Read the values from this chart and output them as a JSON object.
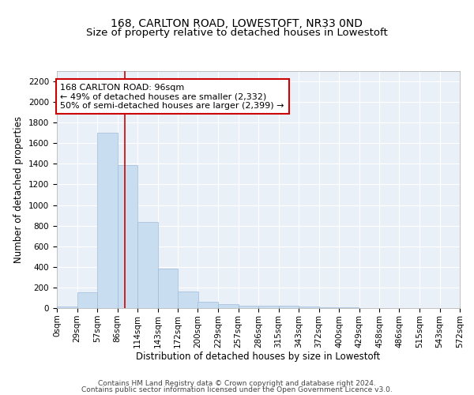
{
  "title": "168, CARLTON ROAD, LOWESTOFT, NR33 0ND",
  "subtitle": "Size of property relative to detached houses in Lowestoft",
  "xlabel": "Distribution of detached houses by size in Lowestoft",
  "ylabel": "Number of detached properties",
  "bar_color": "#c8ddf0",
  "bar_edge_color": "#a0bcd8",
  "bg_color": "#eaf0f8",
  "grid_color": "white",
  "bin_edges": [
    0,
    28.6,
    57.2,
    85.8,
    114.4,
    143.0,
    171.6,
    200.2,
    228.8,
    257.4,
    286.0,
    314.6,
    343.2,
    371.8,
    400.4,
    429.0,
    457.6,
    486.2,
    514.8,
    543.4,
    572.0
  ],
  "bar_heights": [
    15,
    155,
    1700,
    1390,
    835,
    385,
    160,
    60,
    35,
    25,
    25,
    20,
    15,
    5,
    5,
    3,
    2,
    1,
    1,
    1
  ],
  "property_size": 96,
  "red_line_color": "#cc0000",
  "annotation_line1": "168 CARLTON ROAD: 96sqm",
  "annotation_line2": "← 49% of detached houses are smaller (2,332)",
  "annotation_line3": "50% of semi-detached houses are larger (2,399) →",
  "annotation_box_color": "white",
  "annotation_box_edge": "#cc0000",
  "ylim_max": 2300,
  "yticks": [
    0,
    200,
    400,
    600,
    800,
    1000,
    1200,
    1400,
    1600,
    1800,
    2000,
    2200
  ],
  "tick_labels": [
    "0sqm",
    "29sqm",
    "57sqm",
    "86sqm",
    "114sqm",
    "143sqm",
    "172sqm",
    "200sqm",
    "229sqm",
    "257sqm",
    "286sqm",
    "315sqm",
    "343sqm",
    "372sqm",
    "400sqm",
    "429sqm",
    "458sqm",
    "486sqm",
    "515sqm",
    "543sqm",
    "572sqm"
  ],
  "footer_line1": "Contains HM Land Registry data © Crown copyright and database right 2024.",
  "footer_line2": "Contains public sector information licensed under the Open Government Licence v3.0.",
  "title_fontsize": 10,
  "subtitle_fontsize": 9.5,
  "axis_label_fontsize": 8.5,
  "tick_fontsize": 7.5,
  "annotation_fontsize": 8,
  "footer_fontsize": 6.5
}
